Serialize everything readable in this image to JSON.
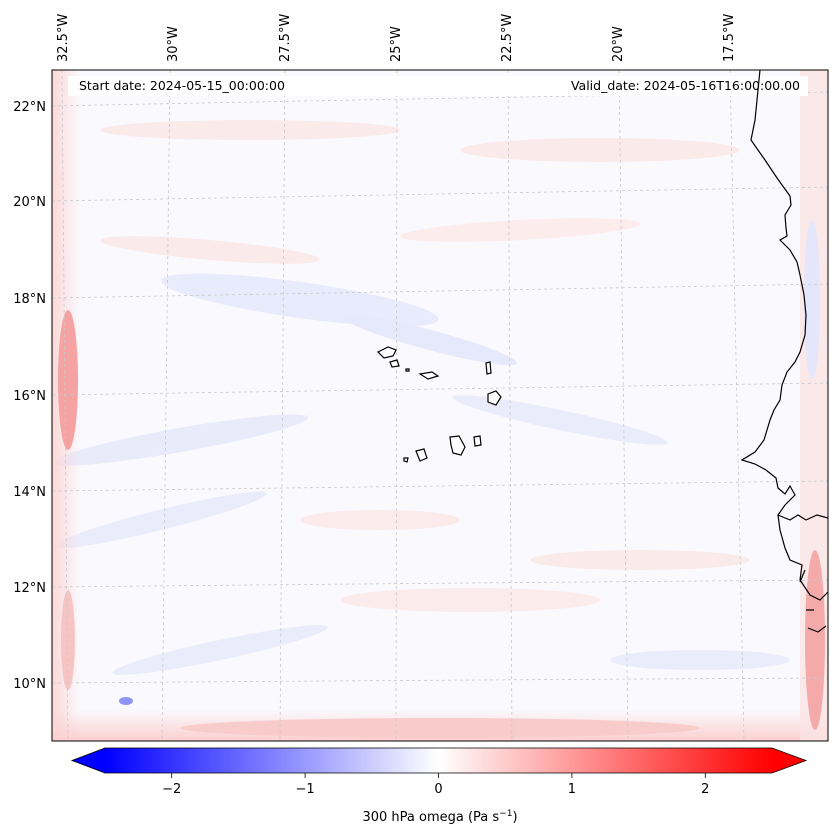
{
  "map": {
    "start_label": "Start date: 2024-05-15_00:00:00",
    "valid_label": "Valid_date: 2024-05-16T16:00:00.00",
    "lon_labels": [
      "32.5°W",
      "30°W",
      "27.5°W",
      "25°W",
      "22.5°W",
      "20°W",
      "17.5°W"
    ],
    "lat_labels": [
      "22°N",
      "20°N",
      "18°N",
      "16°N",
      "14°N",
      "12°N",
      "10°N"
    ],
    "field": "300 hPa omega",
    "coastline_color": "#000000"
  },
  "colorbar": {
    "label_main": "300 hPa omega (Pa s",
    "label_exp": "−1",
    "label_close": ")",
    "ticks": [
      "−2",
      "−1",
      "0",
      "1",
      "2"
    ],
    "tick_values": [
      -2,
      -1,
      0,
      1,
      2
    ],
    "range": [
      -2.5,
      2.5
    ],
    "extend": "both",
    "colors": {
      "min": "#0000ff",
      "mid": "#ffffff",
      "max": "#ff0000"
    }
  }
}
